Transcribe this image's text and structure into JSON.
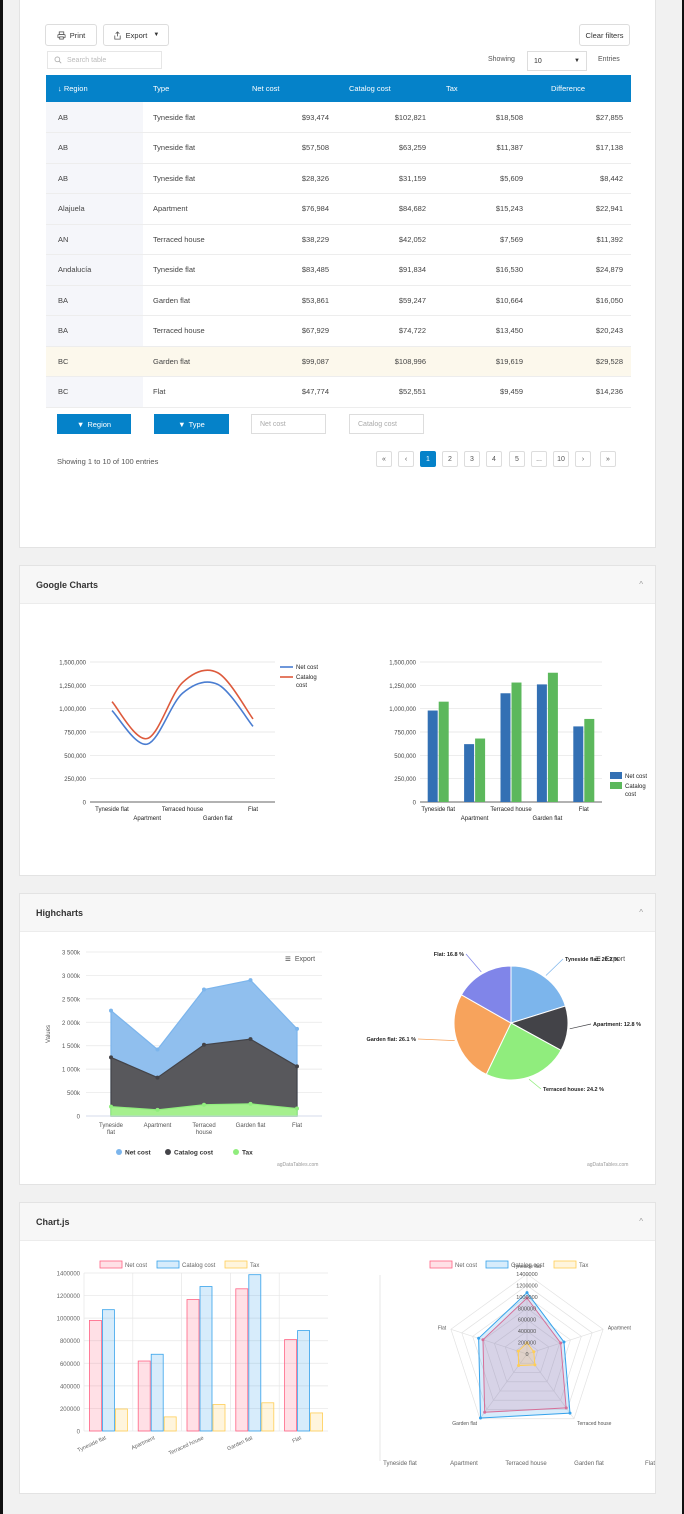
{
  "datatable": {
    "print_label": "Print",
    "export_label": "Export",
    "clear_filters_label": "Clear filters",
    "search_placeholder": "Search table",
    "showing_label": "Showing",
    "entries_value": "10",
    "entries_label": "Entries",
    "columns": [
      "Region",
      "Type",
      "Net cost",
      "Catalog cost",
      "Tax",
      "Difference"
    ],
    "rows": [
      [
        "AB",
        "Tyneside flat",
        "$93,474",
        "$102,821",
        "$18,508",
        "$27,855"
      ],
      [
        "AB",
        "Tyneside flat",
        "$57,508",
        "$63,259",
        "$11,387",
        "$17,138"
      ],
      [
        "AB",
        "Tyneside flat",
        "$28,326",
        "$31,159",
        "$5,609",
        "$8,442"
      ],
      [
        "Alajuela",
        "Apartment",
        "$76,984",
        "$84,682",
        "$15,243",
        "$22,941"
      ],
      [
        "AN",
        "Terraced house",
        "$38,229",
        "$42,052",
        "$7,569",
        "$11,392"
      ],
      [
        "Andalucía",
        "Tyneside flat",
        "$83,485",
        "$91,834",
        "$16,530",
        "$24,879"
      ],
      [
        "BA",
        "Garden flat",
        "$53,861",
        "$59,247",
        "$10,664",
        "$16,050"
      ],
      [
        "BA",
        "Terraced house",
        "$67,929",
        "$74,722",
        "$13,450",
        "$20,243"
      ],
      [
        "BC",
        "Garden flat",
        "$99,087",
        "$108,996",
        "$19,619",
        "$29,528"
      ],
      [
        "BC",
        "Flat",
        "$47,774",
        "$52,551",
        "$9,459",
        "$14,236"
      ]
    ],
    "filter_region": "Region",
    "filter_type": "Type",
    "filter_net_placeholder": "Net cost",
    "filter_catalog_placeholder": "Catalog cost",
    "info": "Showing 1 to 10 of 100 entries",
    "pages": [
      "1",
      "2",
      "3",
      "4",
      "5",
      "...",
      "10"
    ],
    "active_page": "1",
    "accent_color": "#0582c9"
  },
  "google_charts": {
    "title": "Google Charts"
  },
  "highcharts": {
    "title": "Highcharts",
    "export_label": "Export",
    "credit": "agDataTables.com"
  },
  "chartjs": {
    "title": "Chart.js"
  },
  "chart_data": [
    {
      "type": "line",
      "library": "Google Charts",
      "categories": [
        "Tyneside flat",
        "Apartment",
        "Terraced house",
        "Garden flat",
        "Flat"
      ],
      "series": [
        {
          "name": "Net cost",
          "values": [
            980000,
            620000,
            1165000,
            1260000,
            810000
          ],
          "color": "#4a7dd1"
        },
        {
          "name": "Catalog cost",
          "values": [
            1075000,
            680000,
            1280000,
            1385000,
            890000
          ],
          "color": "#dd5a3c"
        }
      ],
      "yticks": [
        "0",
        "250,000",
        "500,000",
        "750,000",
        "1,000,000",
        "1,250,000",
        "1,500,000"
      ],
      "ylim": [
        0,
        1500000
      ],
      "legend": "right",
      "curve": "smooth"
    },
    {
      "type": "bar",
      "library": "Google Charts",
      "categories": [
        "Tyneside flat",
        "Apartment",
        "Terraced house",
        "Garden flat",
        "Flat"
      ],
      "series": [
        {
          "name": "Net cost",
          "values": [
            980000,
            620000,
            1165000,
            1260000,
            810000
          ],
          "color": "#3370b4"
        },
        {
          "name": "Catalog cost",
          "values": [
            1075000,
            680000,
            1280000,
            1385000,
            890000
          ],
          "color": "#5cb85c"
        }
      ],
      "yticks": [
        "0",
        "250,000",
        "500,000",
        "750,000",
        "1,000,000",
        "1,250,000",
        "1,500,000"
      ],
      "ylim": [
        0,
        1500000
      ],
      "legend": "right-bottom"
    },
    {
      "type": "area",
      "library": "Highcharts",
      "categories": [
        "Tyneside flat",
        "Apartment",
        "Terraced house",
        "Garden flat",
        "Flat"
      ],
      "series": [
        {
          "name": "Net cost",
          "values": [
            2250,
            1420,
            2700,
            2900,
            1860
          ],
          "color": "#7cb5ec"
        },
        {
          "name": "Catalog cost",
          "values": [
            1250,
            820,
            1520,
            1640,
            1060
          ],
          "color": "#434348"
        },
        {
          "name": "Tax",
          "values": [
            200,
            130,
            240,
            260,
            160
          ],
          "color": "#90ed7d"
        }
      ],
      "yticks": [
        "0",
        "500k",
        "1 000k",
        "1 500k",
        "2 000k",
        "2 500k",
        "3 000k",
        "3 500k"
      ],
      "ylim": [
        0,
        3500
      ],
      "ylabel": "Values",
      "legend": "bottom"
    },
    {
      "type": "pie",
      "library": "Highcharts",
      "slices": [
        {
          "label": "Tyneside flat: 20.2 %",
          "value": 20.2,
          "color": "#7cb5ec"
        },
        {
          "label": "Apartment: 12.8 %",
          "value": 12.8,
          "color": "#434348"
        },
        {
          "label": "Terraced house: 24.2 %",
          "value": 24.2,
          "color": "#90ed7d"
        },
        {
          "label": "Garden flat: 26.1 %",
          "value": 26.1,
          "color": "#f7a35c"
        },
        {
          "label": "Flat: 16.8 %",
          "value": 16.8,
          "color": "#8085e9"
        }
      ]
    },
    {
      "type": "bar",
      "library": "Chart.js",
      "categories": [
        "Tyneside flat",
        "Apartment",
        "Terraced house",
        "Garden flat",
        "Flat"
      ],
      "series": [
        {
          "name": "Net cost",
          "values": [
            980000,
            620000,
            1165000,
            1260000,
            810000
          ],
          "color": "#ff6384"
        },
        {
          "name": "Catalog cost",
          "values": [
            1075000,
            680000,
            1280000,
            1385000,
            890000
          ],
          "color": "#36a2eb"
        },
        {
          "name": "Tax",
          "values": [
            195000,
            125000,
            235000,
            250000,
            160000
          ],
          "color": "#ffce56"
        }
      ],
      "yticks": [
        "0",
        "200000",
        "400000",
        "600000",
        "800000",
        "1000000",
        "1200000",
        "1400000"
      ],
      "ylim": [
        0,
        1400000
      ],
      "legend": "top"
    },
    {
      "type": "radar",
      "library": "Chart.js",
      "categories": [
        "Tyneside flat",
        "Apartment",
        "Terraced house",
        "Garden flat",
        "Flat"
      ],
      "series": [
        {
          "name": "Net cost",
          "values": [
            980000,
            620000,
            1165000,
            1260000,
            810000
          ],
          "color": "#ff6384"
        },
        {
          "name": "Catalog cost",
          "values": [
            1075000,
            680000,
            1280000,
            1385000,
            890000
          ],
          "color": "#36a2eb"
        },
        {
          "name": "Tax",
          "values": [
            195000,
            125000,
            235000,
            250000,
            160000
          ],
          "color": "#ffce56"
        }
      ],
      "rticks": [
        "0",
        "200000",
        "400000",
        "600000",
        "800000",
        "1000000",
        "1200000",
        "1400000"
      ],
      "rlim": [
        0,
        1400000
      ],
      "legend": "top"
    }
  ]
}
